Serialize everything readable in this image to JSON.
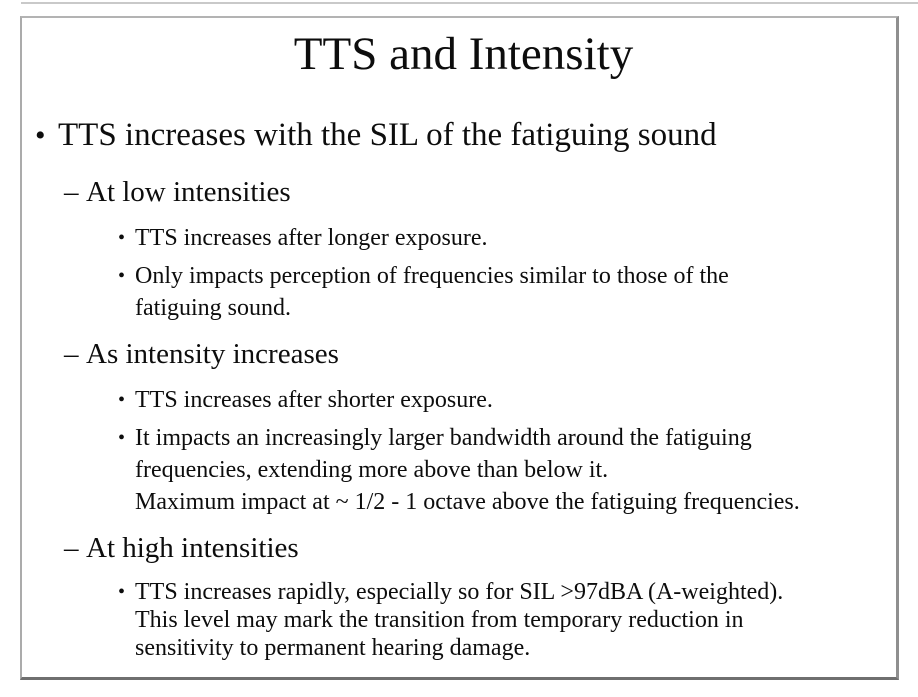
{
  "colors": {
    "slide_background": "#ffffff",
    "slide_border": "#8f8f8f",
    "text": "#0d0d0d"
  },
  "slide": {
    "title": "TTS and Intensity",
    "markers": {
      "level1": "•",
      "level2": "–",
      "level3": "•"
    },
    "outline": {
      "main": "TTS increases with the SIL of the fatiguing sound",
      "sections": [
        {
          "heading": "At low intensities",
          "items": [
            "TTS increases after longer exposure.",
            "Only impacts perception of frequencies similar to those of the\nfatiguing sound."
          ]
        },
        {
          "heading": "As intensity increases",
          "items": [
            "TTS increases after shorter exposure.",
            "It impacts an increasingly larger bandwidth around the fatiguing\nfrequencies, extending more above than below it.\nMaximum impact at ~ 1/2 - 1 octave above the fatiguing frequencies."
          ]
        },
        {
          "heading": "At high intensities",
          "items": [
            "TTS increases rapidly, especially so for SIL >97dBA (A-weighted).\nThis level may mark the transition from temporary reduction in\nsensitivity to permanent hearing damage."
          ]
        }
      ]
    }
  }
}
